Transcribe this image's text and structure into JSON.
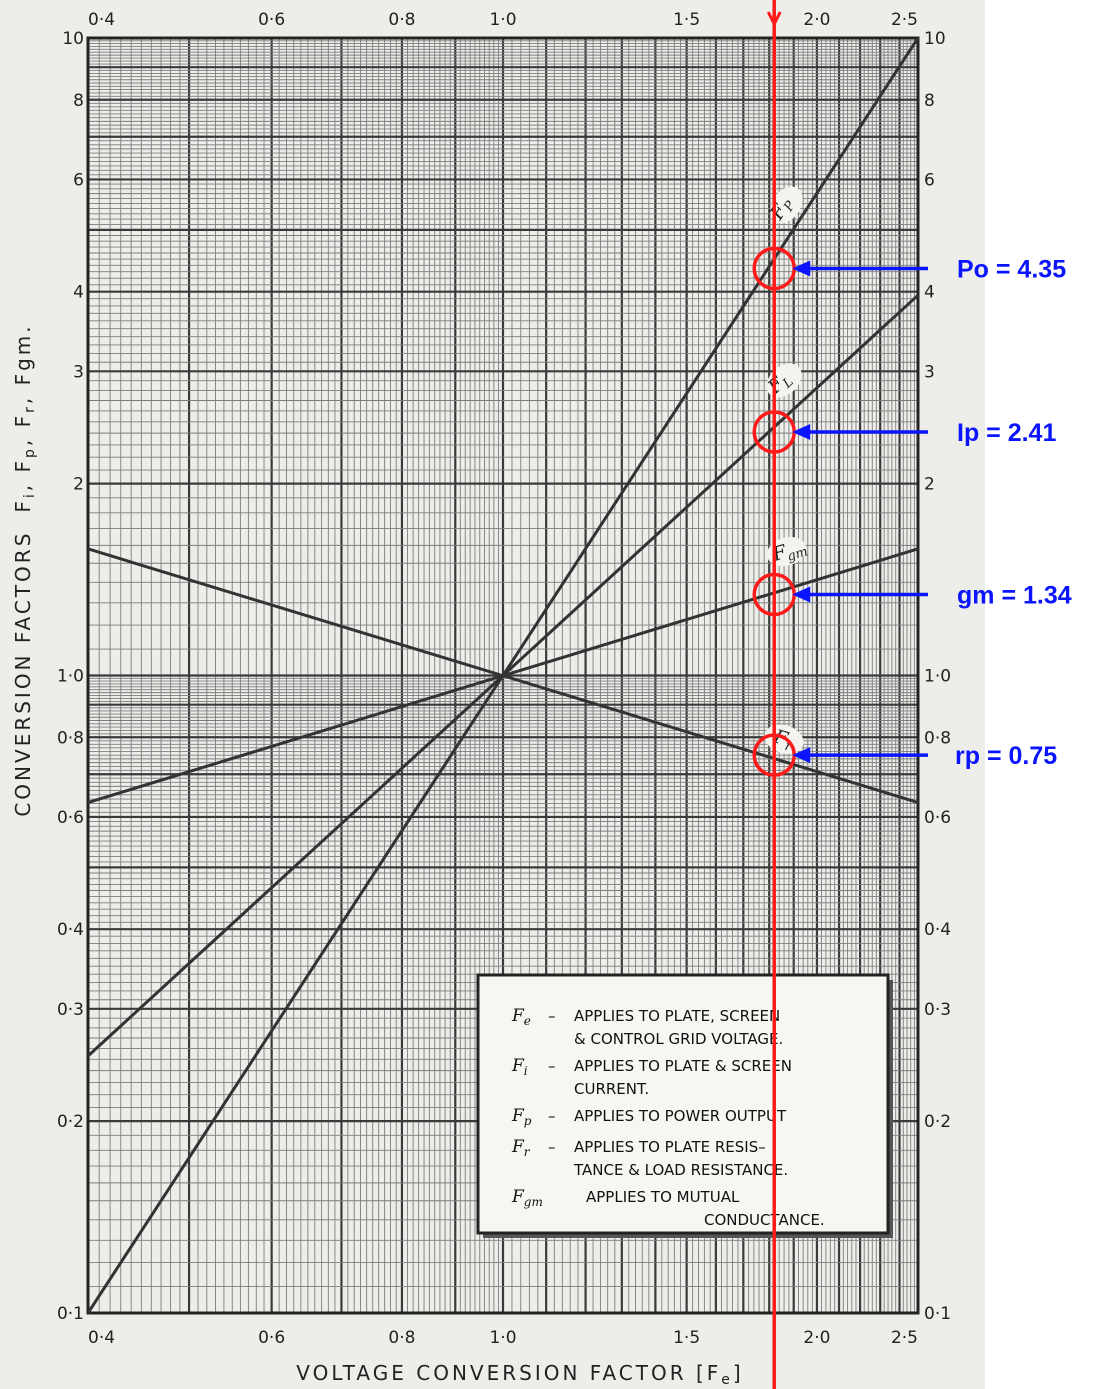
{
  "colors": {
    "paper": "#ededea",
    "grid_dark": "#3a3a3a",
    "grid_light": "#7d7d7d",
    "curve": "#333333",
    "marker": "#ff1a1a",
    "annotation": "#0a14ff"
  },
  "chart_data": {
    "type": "line",
    "title": "",
    "xlabel": "VOLTAGE   CONVERSION   FACTOR  [F",
    "xlabel_sub": "e",
    "xlabel_end": "]",
    "ylabel": "CONVERSION  FACTORS  F",
    "ylabel_parts": [
      "CONVERSION  FACTORS",
      "F",
      "i",
      ", F",
      "p",
      ", F",
      "r",
      ", F",
      "gm."
    ],
    "x_scale": "log",
    "y_scale": "log",
    "xlim": [
      0.4,
      2.5
    ],
    "ylim": [
      0.1,
      10
    ],
    "x_ticks": [
      {
        "value": 0.4,
        "label": "0·4"
      },
      {
        "value": 0.6,
        "label": "0·6"
      },
      {
        "value": 0.8,
        "label": "0·8"
      },
      {
        "value": 1.0,
        "label": "1·0"
      },
      {
        "value": 1.5,
        "label": "1·5"
      },
      {
        "value": 2.0,
        "label": "2·0"
      },
      {
        "value": 2.5,
        "label": "2·5"
      }
    ],
    "y_ticks": [
      {
        "value": 0.1,
        "label": "0·1"
      },
      {
        "value": 0.2,
        "label": "0·2"
      },
      {
        "value": 0.3,
        "label": "0·3"
      },
      {
        "value": 0.4,
        "label": "0·4"
      },
      {
        "value": 0.6,
        "label": "0·6"
      },
      {
        "value": 0.8,
        "label": "0·8"
      },
      {
        "value": 1.0,
        "label": "1·0"
      },
      {
        "value": 2,
        "label": "2"
      },
      {
        "value": 3,
        "label": "3"
      },
      {
        "value": 4,
        "label": "4"
      },
      {
        "value": 6,
        "label": "6"
      },
      {
        "value": 8,
        "label": "8"
      },
      {
        "value": 10,
        "label": "10"
      }
    ],
    "grid": true,
    "series": [
      {
        "name": "Fp",
        "label_main": "F",
        "label_sub": "P",
        "exponent": 2.5,
        "x": [
          0.4,
          2.5
        ],
        "y": [
          0.1,
          10
        ]
      },
      {
        "name": "Fi",
        "label_main": "F",
        "label_sub": "L",
        "exponent": 1.5,
        "x": [
          0.4,
          2.5
        ],
        "y": [
          0.253,
          3.95
        ]
      },
      {
        "name": "Fgm",
        "label_main": "F",
        "label_sub": "gm",
        "exponent": 0.5,
        "x": [
          0.4,
          2.5
        ],
        "y": [
          0.632,
          1.58
        ]
      },
      {
        "name": "Fr",
        "label_main": "F",
        "label_sub": "r",
        "exponent": -0.5,
        "x": [
          0.4,
          2.5
        ],
        "y": [
          1.58,
          0.632
        ]
      }
    ],
    "marker_line": {
      "x": 1.82
    },
    "annotations": [
      {
        "label": "Po = 4.35",
        "x": 1.82,
        "y": 4.35
      },
      {
        "label": "Ip = 2.41",
        "x": 1.82,
        "y": 2.41
      },
      {
        "label": "gm = 1.34",
        "x": 1.82,
        "y": 1.34
      },
      {
        "label": "rp = 0.75",
        "x": 1.82,
        "y": 0.75
      }
    ],
    "legend": {
      "placement": "bottom-right",
      "entries": [
        {
          "sym": "F",
          "sub": "e",
          "dash": "–",
          "lines": [
            "APPLIES  TO  PLATE,  SCREEN",
            "& CONTROL  GRID  VOLTAGE."
          ]
        },
        {
          "sym": "F",
          "sub": "i",
          "dash": "–",
          "lines": [
            "APPLIES  TO  PLATE & SCREEN",
            "CURRENT."
          ]
        },
        {
          "sym": "F",
          "sub": "p",
          "dash": "–",
          "lines": [
            "APPLIES  TO  POWER  OUTPUT"
          ]
        },
        {
          "sym": "F",
          "sub": "r",
          "dash": "–",
          "lines": [
            "APPLIES  TO  PLATE  RESIS–",
            "TANCE & LOAD  RESISTANCE."
          ]
        },
        {
          "sym": "F",
          "sub": "gm",
          "dash": "",
          "lines": [
            "APPLIES  TO  MUTUAL",
            "CONDUCTANCE."
          ]
        }
      ]
    }
  }
}
